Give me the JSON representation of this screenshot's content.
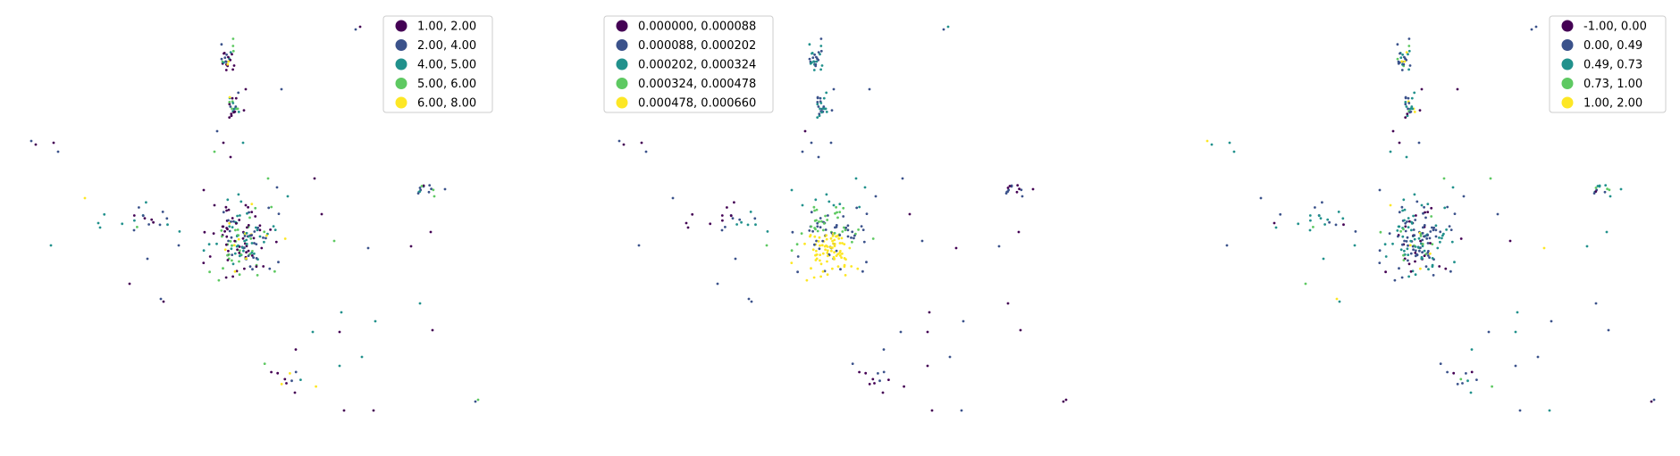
{
  "chart_data": [
    {
      "type": "scatter",
      "classification": "categorical",
      "legend_placement": "upper-right",
      "axes_visible": false,
      "legend": [
        {
          "label": "1.00, 2.00",
          "color": "#440154"
        },
        {
          "label": "2.00, 4.00",
          "color": "#3b528b"
        },
        {
          "label": "4.00, 5.00",
          "color": "#21918c"
        },
        {
          "label": "5.00, 6.00",
          "color": "#5ec962"
        },
        {
          "label": "6.00, 8.00",
          "color": "#fde725"
        }
      ]
    },
    {
      "type": "scatter",
      "classification": "categorical",
      "legend_placement": "upper-left",
      "axes_visible": false,
      "legend": [
        {
          "label": "0.000000, 0.000088",
          "color": "#440154"
        },
        {
          "label": "0.000088, 0.000202",
          "color": "#3b528b"
        },
        {
          "label": "0.000202, 0.000324",
          "color": "#21918c"
        },
        {
          "label": "0.000324, 0.000478",
          "color": "#5ec962"
        },
        {
          "label": "0.000478, 0.000660",
          "color": "#fde725"
        }
      ]
    },
    {
      "type": "scatter",
      "classification": "categorical",
      "legend_placement": "upper-right",
      "axes_visible": false,
      "legend": [
        {
          "label": "-1.00,  0.00",
          "color": "#440154"
        },
        {
          "label": " 0.00,  0.49",
          "color": "#3b528b"
        },
        {
          "label": " 0.49,  0.73",
          "color": "#21918c"
        },
        {
          "label": " 0.73,  1.00",
          "color": "#5ec962"
        },
        {
          "label": " 1.00,  2.00",
          "color": "#fde725"
        }
      ]
    }
  ]
}
